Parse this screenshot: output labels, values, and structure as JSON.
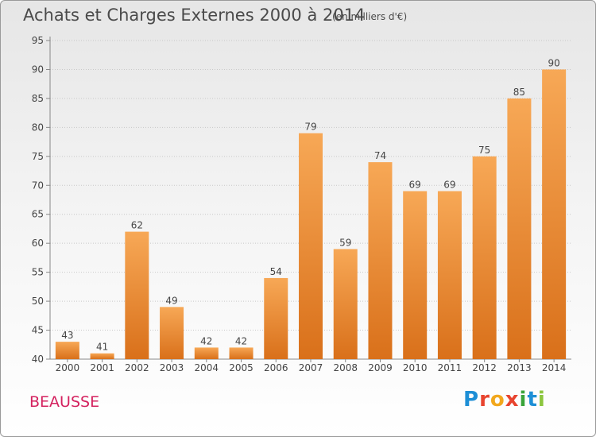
{
  "chart_data": {
    "type": "bar",
    "title": "Achats et Charges Externes 2000 à 2014",
    "subtitle": "(en milliers d'€)",
    "categories": [
      "2000",
      "2001",
      "2002",
      "2003",
      "2004",
      "2005",
      "2006",
      "2007",
      "2008",
      "2009",
      "2010",
      "2011",
      "2012",
      "2013",
      "2014"
    ],
    "values": [
      43,
      41,
      62,
      49,
      42,
      42,
      54,
      79,
      59,
      74,
      69,
      69,
      75,
      85,
      90
    ],
    "ylim": [
      40,
      95
    ],
    "yticks": [
      40,
      45,
      50,
      55,
      60,
      65,
      70,
      75,
      80,
      85,
      90,
      95
    ],
    "grid": true,
    "bar_color": "#f08c2e"
  },
  "footer": {
    "commune": "BEAUSSE",
    "logo_letters": [
      {
        "char": "P",
        "color": "#1e8fd6"
      },
      {
        "char": "r",
        "color": "#e8442f"
      },
      {
        "char": "o",
        "color": "#f2a81d"
      },
      {
        "char": "x",
        "color": "#e8442f"
      },
      {
        "char": "i",
        "color": "#3aa43a"
      },
      {
        "char": "t",
        "color": "#1e8fd6"
      },
      {
        "char": "i",
        "color": "#8cc63f"
      }
    ]
  }
}
